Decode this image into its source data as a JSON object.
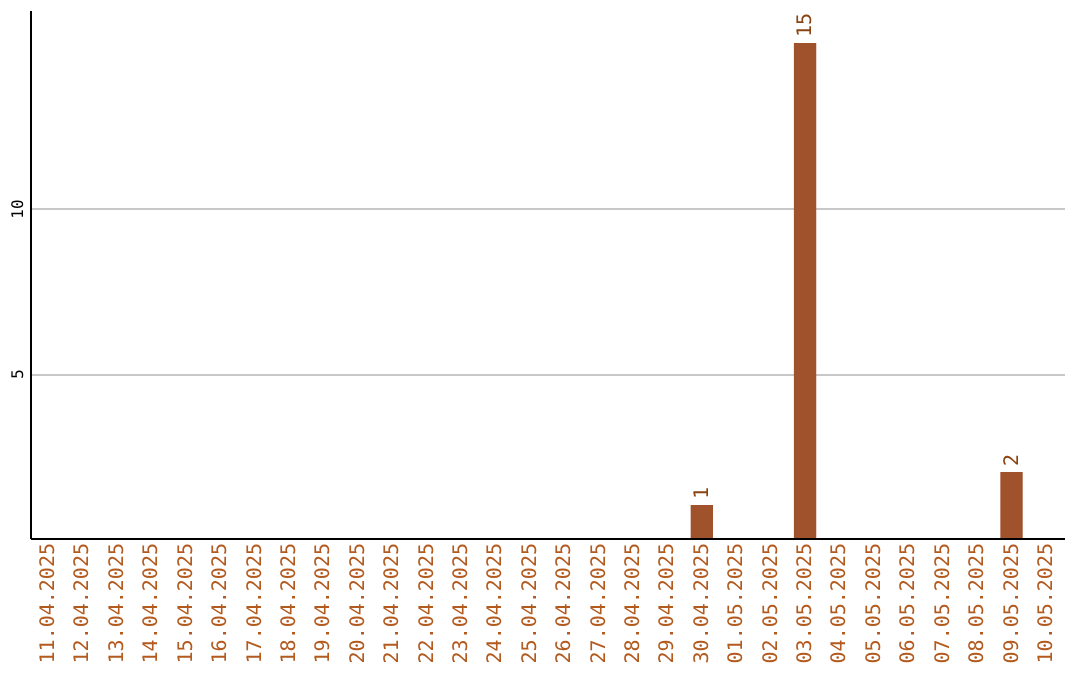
{
  "chart_data": {
    "type": "bar",
    "categories": [
      "11.04.2025",
      "12.04.2025",
      "13.04.2025",
      "14.04.2025",
      "15.04.2025",
      "16.04.2025",
      "17.04.2025",
      "18.04.2025",
      "19.04.2025",
      "20.04.2025",
      "21.04.2025",
      "22.04.2025",
      "23.04.2025",
      "24.04.2025",
      "25.04.2025",
      "26.04.2025",
      "27.04.2025",
      "28.04.2025",
      "29.04.2025",
      "30.04.2025",
      "01.05.2025",
      "02.05.2025",
      "03.05.2025",
      "04.05.2025",
      "05.05.2025",
      "06.05.2025",
      "07.05.2025",
      "08.05.2025",
      "09.05.2025",
      "10.05.2025"
    ],
    "values": [
      null,
      null,
      null,
      null,
      null,
      null,
      null,
      null,
      null,
      null,
      null,
      null,
      null,
      null,
      null,
      null,
      null,
      null,
      null,
      1,
      null,
      null,
      15,
      null,
      null,
      null,
      null,
      null,
      2,
      null
    ],
    "color": "#a0522d",
    "ylim": [
      0,
      16
    ],
    "yticks": [
      5,
      10
    ],
    "grid": "y",
    "data_labels": true
  }
}
